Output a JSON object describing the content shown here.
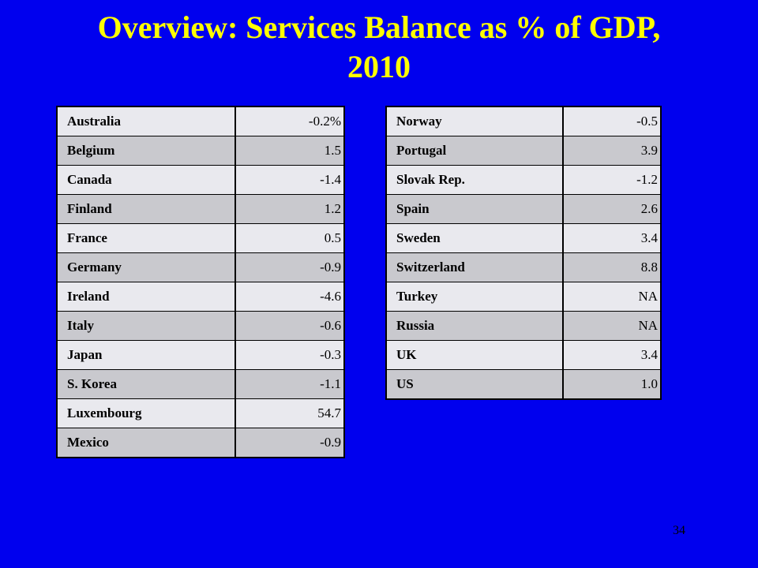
{
  "slide": {
    "title_line1": "Overview: Services Balance as % of GDP,",
    "title_line2": "2010",
    "slide_number": "34",
    "background_color": "#0000ee",
    "title_color": "#ffff00"
  },
  "table_left": {
    "rows": [
      {
        "country": "Australia",
        "value": "-0.2%"
      },
      {
        "country": "Belgium",
        "value": "1.5"
      },
      {
        "country": "Canada",
        "value": "-1.4"
      },
      {
        "country": "Finland",
        "value": "1.2"
      },
      {
        "country": "France",
        "value": "0.5"
      },
      {
        "country": "Germany",
        "value": "-0.9"
      },
      {
        "country": "Ireland",
        "value": "-4.6"
      },
      {
        "country": "Italy",
        "value": "-0.6"
      },
      {
        "country": "Japan",
        "value": "-0.3"
      },
      {
        "country": "S. Korea",
        "value": "-1.1"
      },
      {
        "country": "Luxembourg",
        "value": "54.7"
      },
      {
        "country": "Mexico",
        "value": "-0.9"
      }
    ]
  },
  "table_right": {
    "rows": [
      {
        "country": "Norway",
        "value": "-0.5"
      },
      {
        "country": "Portugal",
        "value": "3.9"
      },
      {
        "country": "Slovak Rep.",
        "value": "-1.2"
      },
      {
        "country": "Spain",
        "value": "2.6"
      },
      {
        "country": "Sweden",
        "value": "3.4"
      },
      {
        "country": "Switzerland",
        "value": "8.8"
      },
      {
        "country": "Turkey",
        "value": "NA"
      },
      {
        "country": "Russia",
        "value": "NA"
      },
      {
        "country": "UK",
        "value": "3.4"
      },
      {
        "country": "US",
        "value": "1.0"
      }
    ]
  }
}
